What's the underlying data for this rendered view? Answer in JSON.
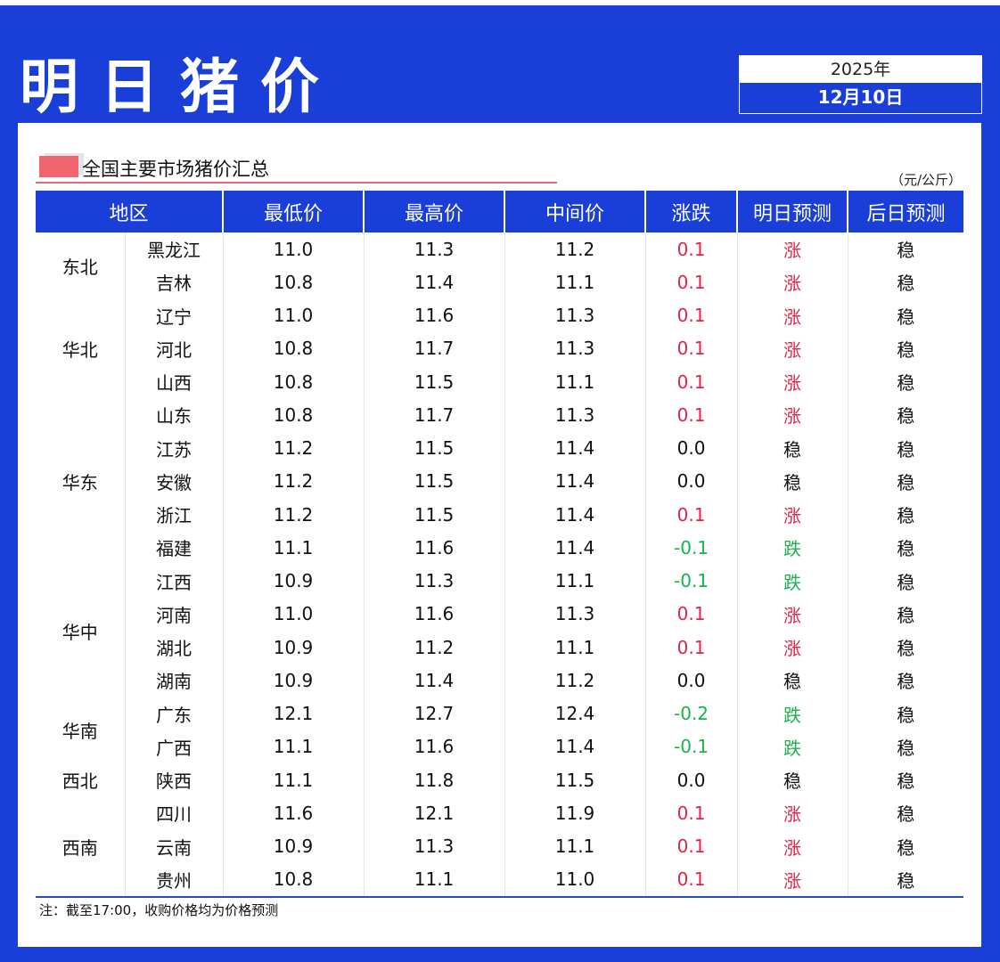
{
  "header": {
    "title": "明日猪价",
    "year": "2025年",
    "date": "12月10日"
  },
  "section": {
    "title": "全国主要市场猪价汇总",
    "unit": "（元/公斤）"
  },
  "table": {
    "columns": [
      "地区",
      "最低价",
      "最高价",
      "中间价",
      "涨跌",
      "明日预测",
      "后日预测"
    ],
    "groups": [
      {
        "region": "东北",
        "rows": [
          {
            "province": "黑龙江",
            "low": "11.0",
            "high": "11.3",
            "mid": "11.2",
            "change": "0.1",
            "tomorrow": "涨",
            "after": "稳"
          },
          {
            "province": "吉林",
            "low": "10.8",
            "high": "11.4",
            "mid": "11.1",
            "change": "0.1",
            "tomorrow": "涨",
            "after": "稳"
          }
        ]
      },
      {
        "region": "华北",
        "rows": [
          {
            "province": "辽宁",
            "low": "11.0",
            "high": "11.6",
            "mid": "11.3",
            "change": "0.1",
            "tomorrow": "涨",
            "after": "稳"
          },
          {
            "province": "河北",
            "low": "10.8",
            "high": "11.7",
            "mid": "11.3",
            "change": "0.1",
            "tomorrow": "涨",
            "after": "稳"
          },
          {
            "province": "山西",
            "low": "10.8",
            "high": "11.5",
            "mid": "11.1",
            "change": "0.1",
            "tomorrow": "涨",
            "after": "稳"
          }
        ]
      },
      {
        "region": "华东",
        "rows": [
          {
            "province": "山东",
            "low": "10.8",
            "high": "11.7",
            "mid": "11.3",
            "change": "0.1",
            "tomorrow": "涨",
            "after": "稳"
          },
          {
            "province": "江苏",
            "low": "11.2",
            "high": "11.5",
            "mid": "11.4",
            "change": "0.0",
            "tomorrow": "稳",
            "after": "稳"
          },
          {
            "province": "安徽",
            "low": "11.2",
            "high": "11.5",
            "mid": "11.4",
            "change": "0.0",
            "tomorrow": "稳",
            "after": "稳"
          },
          {
            "province": "浙江",
            "low": "11.2",
            "high": "11.5",
            "mid": "11.4",
            "change": "0.1",
            "tomorrow": "涨",
            "after": "稳"
          },
          {
            "province": "福建",
            "low": "11.1",
            "high": "11.6",
            "mid": "11.4",
            "change": "-0.1",
            "tomorrow": "跌",
            "after": "稳"
          }
        ]
      },
      {
        "region": "华中",
        "rows": [
          {
            "province": "江西",
            "low": "10.9",
            "high": "11.3",
            "mid": "11.1",
            "change": "-0.1",
            "tomorrow": "跌",
            "after": "稳"
          },
          {
            "province": "河南",
            "low": "11.0",
            "high": "11.6",
            "mid": "11.3",
            "change": "0.1",
            "tomorrow": "涨",
            "after": "稳"
          },
          {
            "province": "湖北",
            "low": "10.9",
            "high": "11.2",
            "mid": "11.1",
            "change": "0.1",
            "tomorrow": "涨",
            "after": "稳"
          },
          {
            "province": "湖南",
            "low": "10.9",
            "high": "11.4",
            "mid": "11.2",
            "change": "0.0",
            "tomorrow": "稳",
            "after": "稳"
          }
        ]
      },
      {
        "region": "华南",
        "rows": [
          {
            "province": "广东",
            "low": "12.1",
            "high": "12.7",
            "mid": "12.4",
            "change": "-0.2",
            "tomorrow": "跌",
            "after": "稳"
          },
          {
            "province": "广西",
            "low": "11.1",
            "high": "11.6",
            "mid": "11.4",
            "change": "-0.1",
            "tomorrow": "跌",
            "after": "稳"
          }
        ]
      },
      {
        "region": "西北",
        "rows": [
          {
            "province": "陕西",
            "low": "11.1",
            "high": "11.8",
            "mid": "11.5",
            "change": "0.0",
            "tomorrow": "稳",
            "after": "稳"
          }
        ]
      },
      {
        "region": "西南",
        "rows": [
          {
            "province": "四川",
            "low": "11.6",
            "high": "12.1",
            "mid": "11.9",
            "change": "0.1",
            "tomorrow": "涨",
            "after": "稳"
          },
          {
            "province": "云南",
            "low": "10.9",
            "high": "11.3",
            "mid": "11.1",
            "change": "0.1",
            "tomorrow": "涨",
            "after": "稳"
          },
          {
            "province": "贵州",
            "low": "10.8",
            "high": "11.1",
            "mid": "11.0",
            "change": "0.1",
            "tomorrow": "涨",
            "after": "稳"
          }
        ]
      }
    ]
  },
  "note": "注：截至17:00，收购价格均为价格预测",
  "colors": {
    "brand_blue": "#1a3fd8",
    "up_red": "#e0244a",
    "down_green": "#19b34e",
    "section_mark": "#f06470"
  }
}
